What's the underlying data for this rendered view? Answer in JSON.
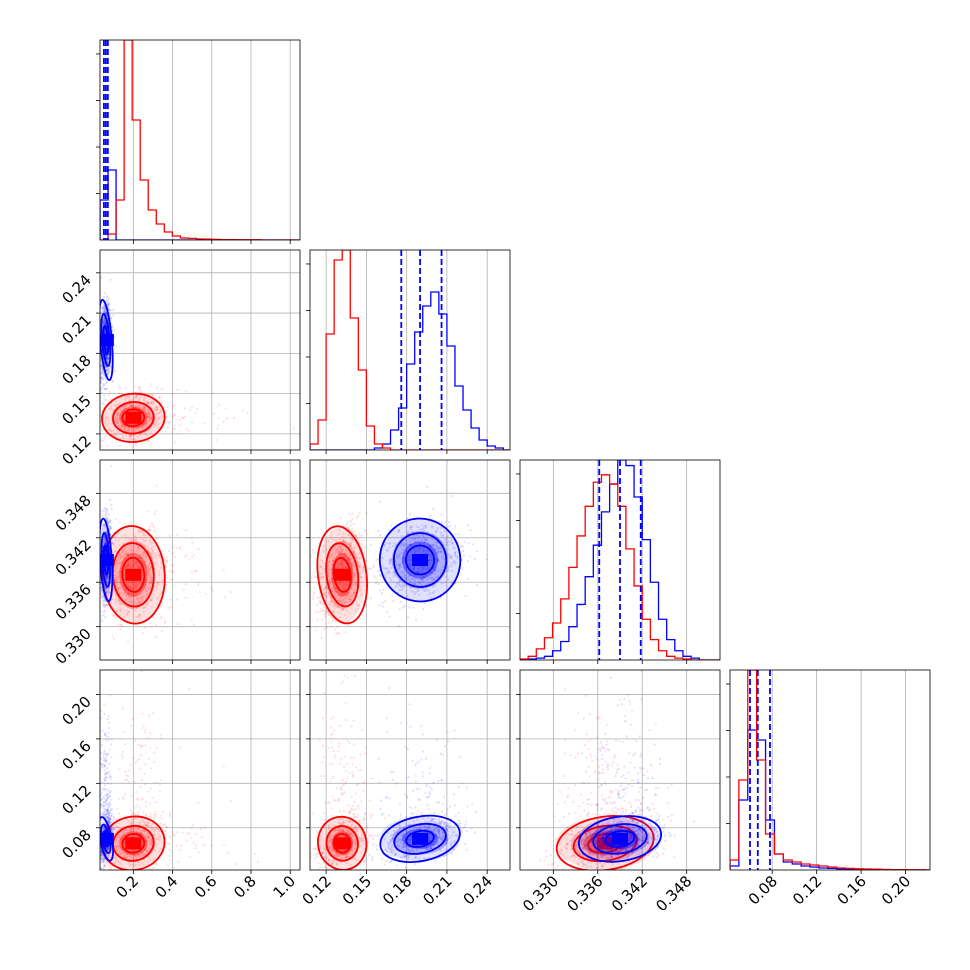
{
  "chart_data": {
    "type": "corner",
    "title": "",
    "colors": {
      "red": "#ff0000",
      "blue": "#0000ff"
    },
    "grid": true,
    "parameters": [
      {
        "id": "p0",
        "range": [
          0.03,
          1.05
        ],
        "ticks": [
          0.2,
          0.4,
          0.6,
          0.8,
          1.0
        ],
        "tick_labels": [
          "0.2",
          "0.4",
          "0.6",
          "0.8",
          "1.0"
        ]
      },
      {
        "id": "p1",
        "range": [
          0.108,
          0.257
        ],
        "ticks": [
          0.12,
          0.15,
          0.18,
          0.21,
          0.24
        ],
        "tick_labels": [
          "0.12",
          "0.15",
          "0.18",
          "0.21",
          "0.24"
        ]
      },
      {
        "id": "p2",
        "range": [
          0.3255,
          0.3525
        ],
        "ticks": [
          0.33,
          0.336,
          0.342,
          0.348
        ],
        "tick_labels": [
          "0.330",
          "0.336",
          "0.342",
          "0.348"
        ]
      },
      {
        "id": "p3",
        "range": [
          0.042,
          0.222
        ],
        "ticks": [
          0.08,
          0.12,
          0.16,
          0.2
        ],
        "tick_labels": [
          "0.08",
          "0.12",
          "0.16",
          "0.20"
        ]
      }
    ],
    "series": [
      {
        "name": "",
        "color": "red",
        "mean": [
          0.2,
          0.132,
          0.337,
          0.066
        ],
        "sd": [
          0.08,
          0.009,
          0.0033,
          0.012
        ]
      },
      {
        "name": "",
        "color": "blue",
        "mean": [
          0.06,
          0.19,
          0.339,
          0.07
        ],
        "sd": [
          0.015,
          0.015,
          0.0028,
          0.01
        ]
      }
    ],
    "histograms": [
      {
        "param": 0,
        "edges": [
          0.03,
          0.071,
          0.112,
          0.153,
          0.194,
          0.235,
          0.276,
          0.317,
          0.358,
          0.399,
          0.44,
          0.481,
          0.522,
          0.563,
          0.604,
          0.645,
          0.686,
          0.727,
          0.768,
          0.809,
          0.85,
          0.891,
          0.932,
          0.973,
          1.014,
          1.05
        ],
        "red": [
          0,
          0.03,
          0.2,
          1.0,
          0.6,
          0.3,
          0.15,
          0.08,
          0.04,
          0.02,
          0.01,
          0.008,
          0.005,
          0.004,
          0.003,
          0.002,
          0.002,
          0.001,
          0.001,
          0.001,
          0,
          0,
          0,
          0,
          0
        ],
        "blue": [
          0.2,
          0.35,
          0,
          0,
          0,
          0,
          0,
          0,
          0,
          0,
          0,
          0,
          0,
          0,
          0,
          0,
          0,
          0,
          0,
          0,
          0,
          0,
          0,
          0,
          0
        ],
        "quantiles": [
          0.05,
          0.06,
          0.07
        ]
      },
      {
        "param": 1,
        "edges": [
          0.108,
          0.114,
          0.12,
          0.126,
          0.132,
          0.138,
          0.144,
          0.15,
          0.156,
          0.162,
          0.168,
          0.174,
          0.18,
          0.186,
          0.192,
          0.198,
          0.204,
          0.21,
          0.216,
          0.222,
          0.228,
          0.234,
          0.24,
          0.246,
          0.252,
          0.257
        ],
        "red": [
          0.03,
          0.15,
          0.58,
          0.95,
          1.0,
          0.66,
          0.4,
          0.12,
          0.03,
          0.01,
          0,
          0,
          0,
          0,
          0,
          0,
          0,
          0,
          0,
          0,
          0,
          0,
          0,
          0,
          0
        ],
        "blue": [
          0,
          0,
          0,
          0,
          0,
          0,
          0,
          0,
          0.01,
          0.03,
          0.1,
          0.21,
          0.43,
          0.59,
          0.72,
          0.79,
          0.68,
          0.52,
          0.32,
          0.2,
          0.11,
          0.05,
          0.02,
          0.01,
          0
        ],
        "quantiles": [
          0.176,
          0.19,
          0.206
        ]
      },
      {
        "param": 2,
        "edges": [
          0.3255,
          0.3266,
          0.3277,
          0.3288,
          0.3299,
          0.331,
          0.3321,
          0.3332,
          0.3343,
          0.3354,
          0.3365,
          0.3376,
          0.3387,
          0.3398,
          0.3409,
          0.342,
          0.3431,
          0.3442,
          0.3453,
          0.3464,
          0.3475,
          0.3486,
          0.3497,
          0.3508,
          0.3519,
          0.3525
        ],
        "red": [
          0.005,
          0.02,
          0.06,
          0.12,
          0.2,
          0.33,
          0.5,
          0.67,
          0.83,
          0.96,
          1.0,
          0.95,
          0.83,
          0.6,
          0.4,
          0.22,
          0.11,
          0.05,
          0.02,
          0.01,
          0.005,
          0,
          0,
          0,
          0
        ],
        "blue": [
          0,
          0.005,
          0.01,
          0.02,
          0.05,
          0.1,
          0.18,
          0.3,
          0.45,
          0.62,
          0.8,
          0.95,
          1.08,
          1.05,
          0.88,
          0.65,
          0.42,
          0.22,
          0.11,
          0.05,
          0.02,
          0.01,
          0,
          0,
          0
        ],
        "quantiles": [
          0.3362,
          0.339,
          0.3418
        ]
      },
      {
        "param": 3,
        "edges": [
          0.042,
          0.05,
          0.058,
          0.066,
          0.074,
          0.082,
          0.09,
          0.098,
          0.106,
          0.114,
          0.122,
          0.13,
          0.138,
          0.146,
          0.154,
          0.162,
          0.17,
          0.178,
          0.186,
          0.194,
          0.202,
          0.21,
          0.218,
          0.222
        ],
        "red": [
          0.05,
          0.45,
          1.0,
          0.55,
          0.18,
          0.08,
          0.05,
          0.04,
          0.03,
          0.025,
          0.02,
          0.015,
          0.01,
          0.008,
          0.006,
          0.005,
          0.004,
          0.003,
          0.002,
          0.002,
          0.001,
          0.001,
          0
        ],
        "blue": [
          0.02,
          0.35,
          0.7,
          0.65,
          0.25,
          0.08,
          0.04,
          0.03,
          0.02,
          0.015,
          0.01,
          0.008,
          0.006,
          0.004,
          0.003,
          0.002,
          0.002,
          0.001,
          0.001,
          0,
          0,
          0,
          0
        ],
        "quantiles": [
          0.06,
          0.067,
          0.078
        ]
      }
    ]
  }
}
